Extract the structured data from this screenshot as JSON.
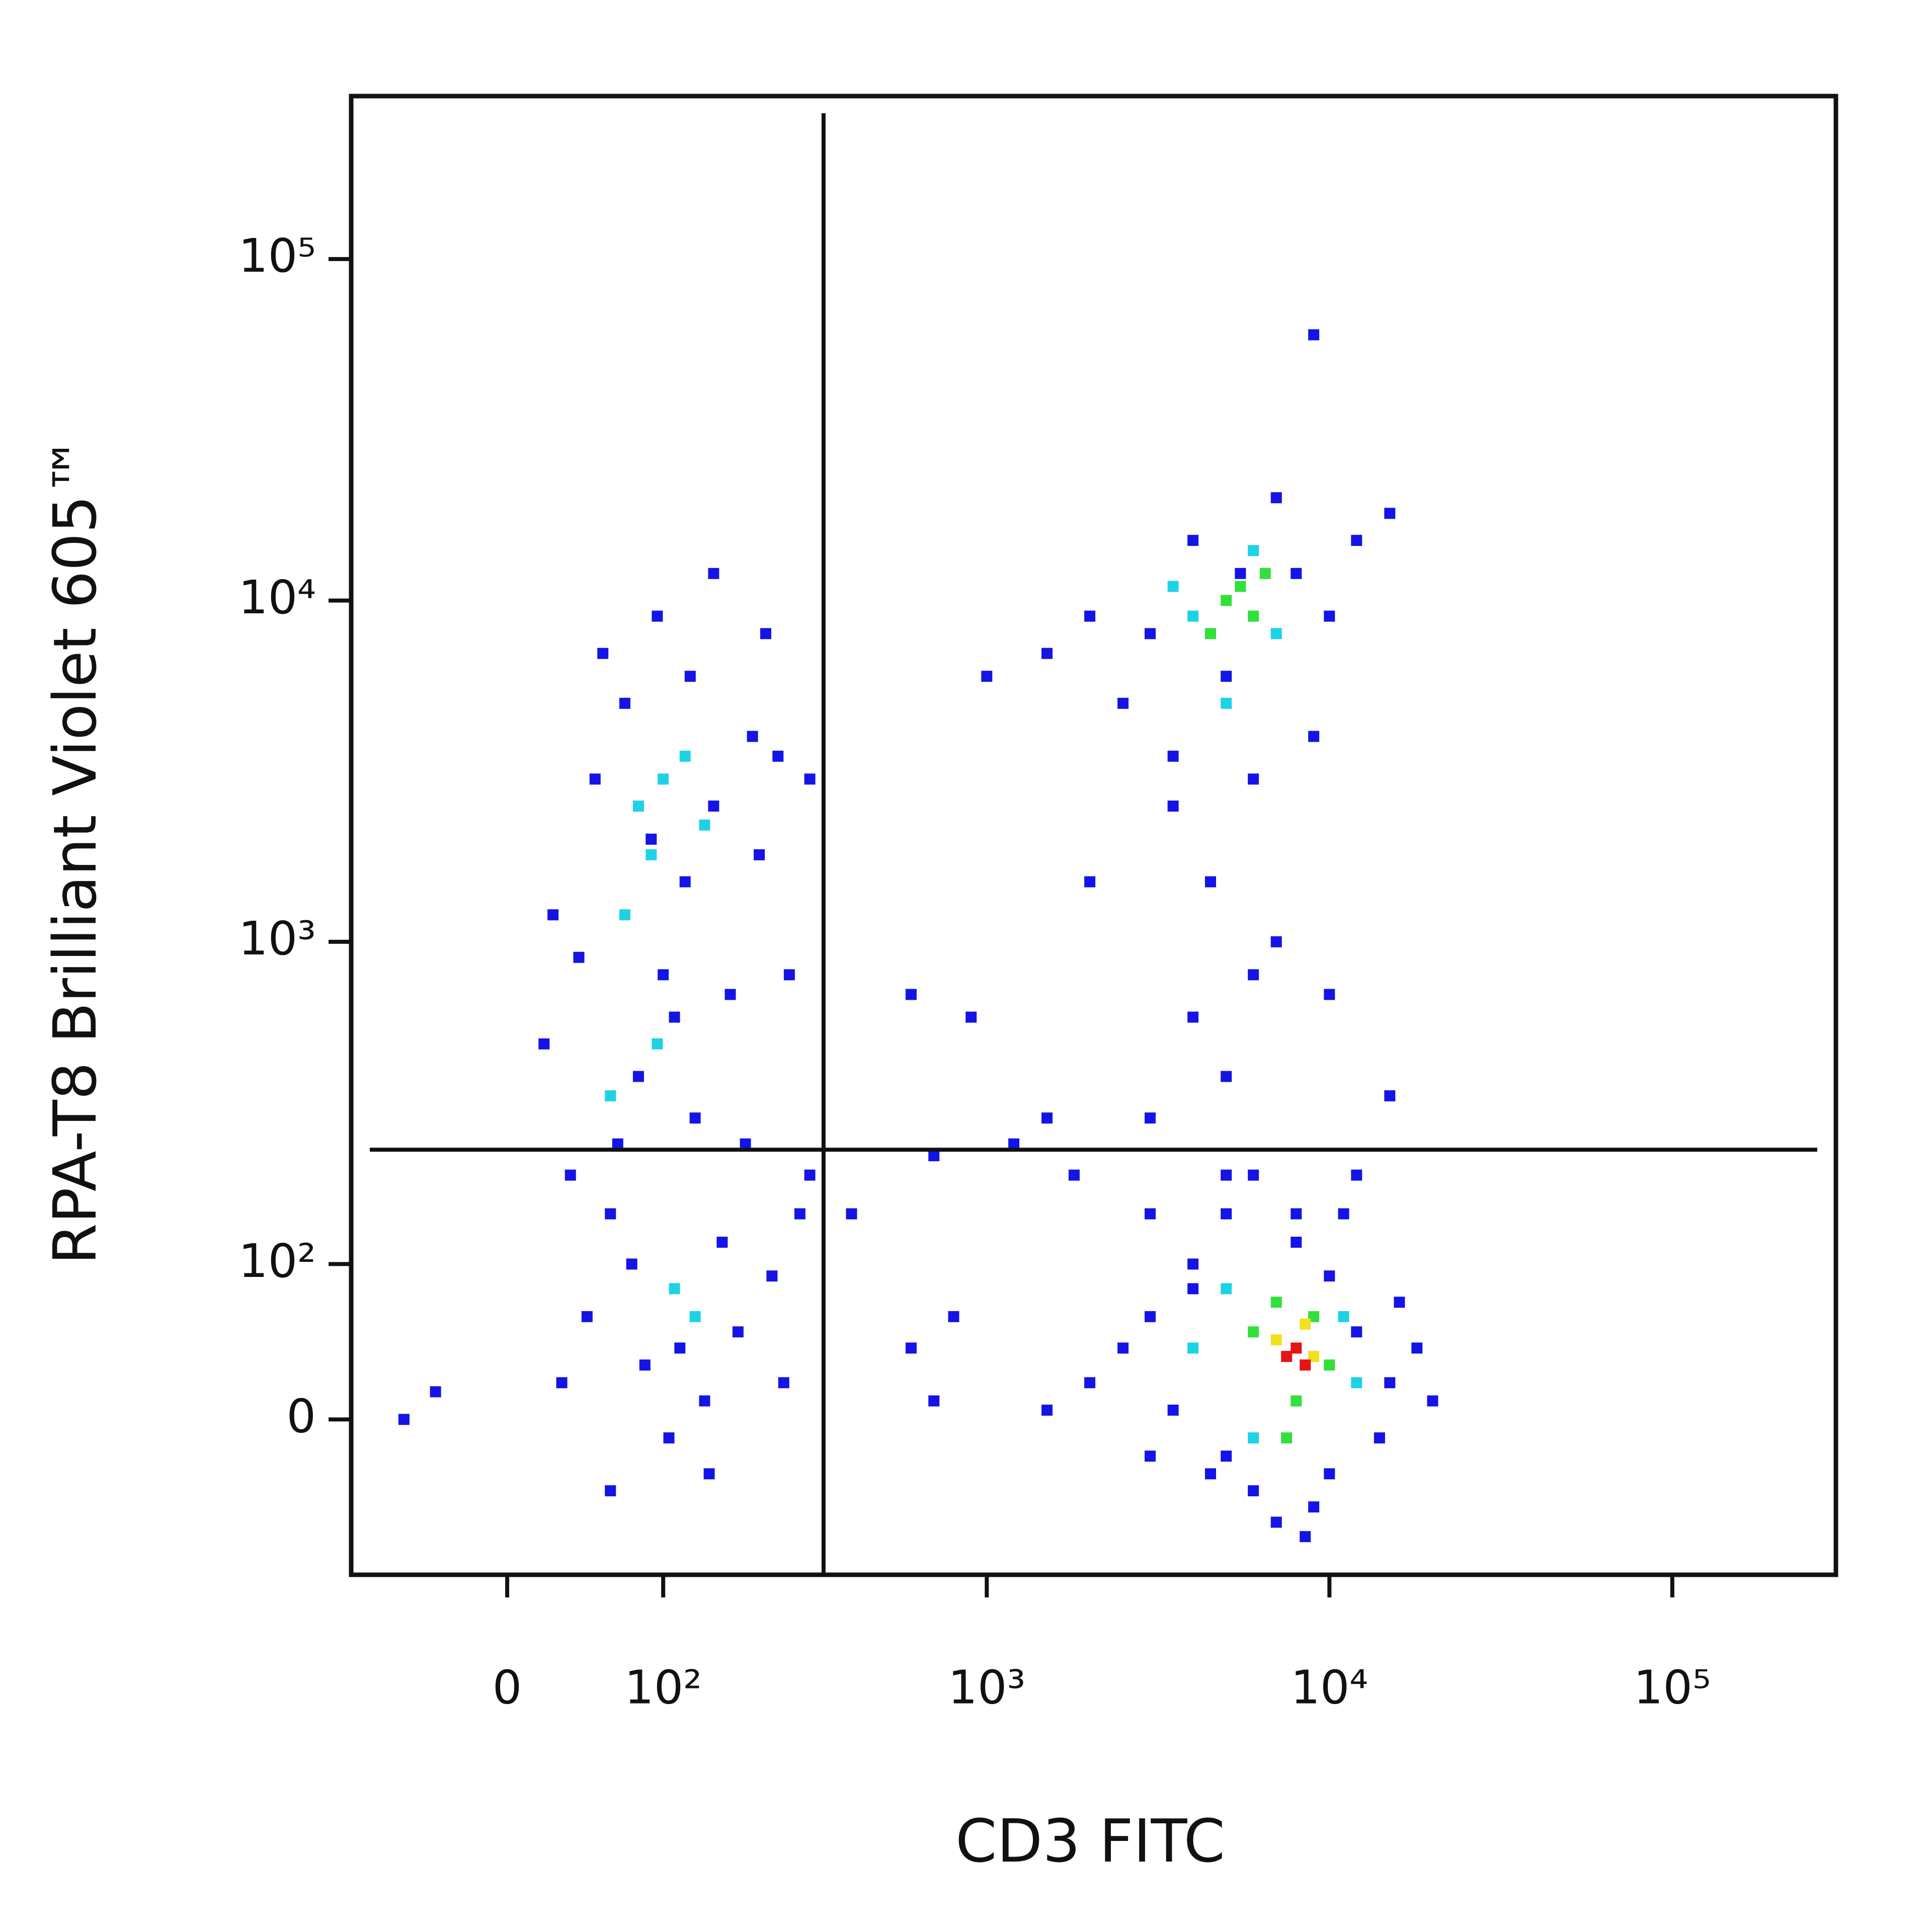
{
  "chart_data": {
    "type": "scatter",
    "x_label": "CD3 FITC",
    "y_label": "RPA-T8 Brilliant Violet 605™",
    "scale": "asinh",
    "asinh_cofactor": 80,
    "xlim": [
      -100,
      300000
    ],
    "ylim": [
      -100,
      300000
    ],
    "xticks": [
      0,
      {
        "value": 100,
        "label": "10²"
      },
      {
        "value": 1000,
        "label": "10³"
      },
      {
        "value": 10000,
        "label": "10⁴"
      },
      {
        "value": 100000,
        "label": "10⁵"
      }
    ],
    "yticks": [
      0,
      {
        "value": 100,
        "label": "10²"
      },
      {
        "value": 1000,
        "label": "10³"
      },
      {
        "value": 10000,
        "label": "10⁴"
      },
      {
        "value": 100000,
        "label": "10⁵"
      }
    ],
    "gates": {
      "x": 330,
      "y": 240
    },
    "series": [
      {
        "color": "#1414e6",
        "x": [
          30,
          45,
          60,
          80,
          100,
          120,
          150,
          200,
          50,
          70,
          90,
          110,
          130,
          160,
          180,
          40,
          25,
          65,
          85,
          140,
          170,
          210,
          240,
          55,
          95,
          125,
          35,
          75,
          115,
          190,
          230,
          20,
          105,
          145,
          60,
          -60,
          -40,
          260,
          300,
          280,
          150,
          220,
          3000,
          4000,
          5000,
          6000,
          3500,
          8000,
          10000,
          7000,
          2500,
          4500,
          6000,
          5000,
          3000,
          7000,
          9000,
          12000,
          15000,
          2000,
          1500,
          1000,
          3500,
          5500,
          9000,
          2000,
          4000,
          600,
          900,
          1500,
          1200,
          300,
          700,
          400,
          800,
          250,
          700,
          1800,
          3000,
          5000,
          8000,
          12000,
          15000,
          10000,
          4000,
          600,
          1500,
          2000,
          3000,
          4000,
          5000,
          6000,
          8000,
          10000,
          12000,
          15000,
          20000,
          14000,
          9000,
          7000,
          3500,
          2500,
          5000,
          6000,
          11000,
          16000,
          4500,
          8500,
          10000,
          3000,
          18000
        ],
        "y": [
          20,
          60,
          150,
          400,
          800,
          1500,
          2500,
          4000,
          3000,
          5000,
          2000,
          600,
          300,
          120,
          50,
          900,
          1200,
          250,
          30,
          10,
          700,
          1800,
          3500,
          7000,
          9000,
          6000,
          200,
          100,
          40,
          250,
          90,
          500,
          -10,
          -30,
          -40,
          0,
          15,
          800,
          3000,
          150,
          12000,
          8000,
          8000,
          15000,
          6000,
          3000,
          2500,
          12000,
          9000,
          20000,
          5000,
          1500,
          800,
          400,
          300,
          1000,
          4000,
          15000,
          18000,
          9000,
          7000,
          6000,
          3500,
          12000,
          60000,
          1500,
          600,
          700,
          600,
          300,
          250,
          200,
          230,
          150,
          60,
          20,
          10,
          200,
          150,
          200,
          150,
          200,
          350,
          700,
          80,
          40,
          5,
          20,
          60,
          100,
          -20,
          -40,
          120,
          90,
          50,
          20,
          10,
          -10,
          -50,
          -60,
          5,
          40,
          150,
          200,
          150,
          70,
          -30,
          -70,
          -30,
          -20,
          40
        ]
      },
      {
        "color": "#1ed2e6",
        "x": [
          80,
          100,
          90,
          120,
          70,
          110,
          130,
          95,
          140,
          60,
          4000,
          7000,
          5000,
          6000,
          3500,
          4000,
          5000,
          11000,
          6000,
          12000
        ],
        "y": [
          2500,
          3000,
          1800,
          3500,
          1200,
          80,
          60,
          500,
          2200,
          350,
          9000,
          8000,
          5000,
          14000,
          11000,
          40,
          80,
          60,
          -10,
          20
        ]
      },
      {
        "color": "#32e03c",
        "x": [
          5000,
          6000,
          5500,
          4500,
          6500,
          6000,
          7000,
          9000,
          10000,
          8000,
          7500
        ],
        "y": [
          10000,
          9000,
          11000,
          8000,
          12000,
          50,
          70,
          60,
          30,
          10,
          -10
        ]
      },
      {
        "color": "#f0e01e",
        "x": [
          7000,
          9000,
          8500
        ],
        "y": [
          45,
          35,
          55
        ]
      },
      {
        "color": "#e61414",
        "x": [
          8000,
          8500,
          7500
        ],
        "y": [
          40,
          30,
          35
        ]
      }
    ]
  }
}
